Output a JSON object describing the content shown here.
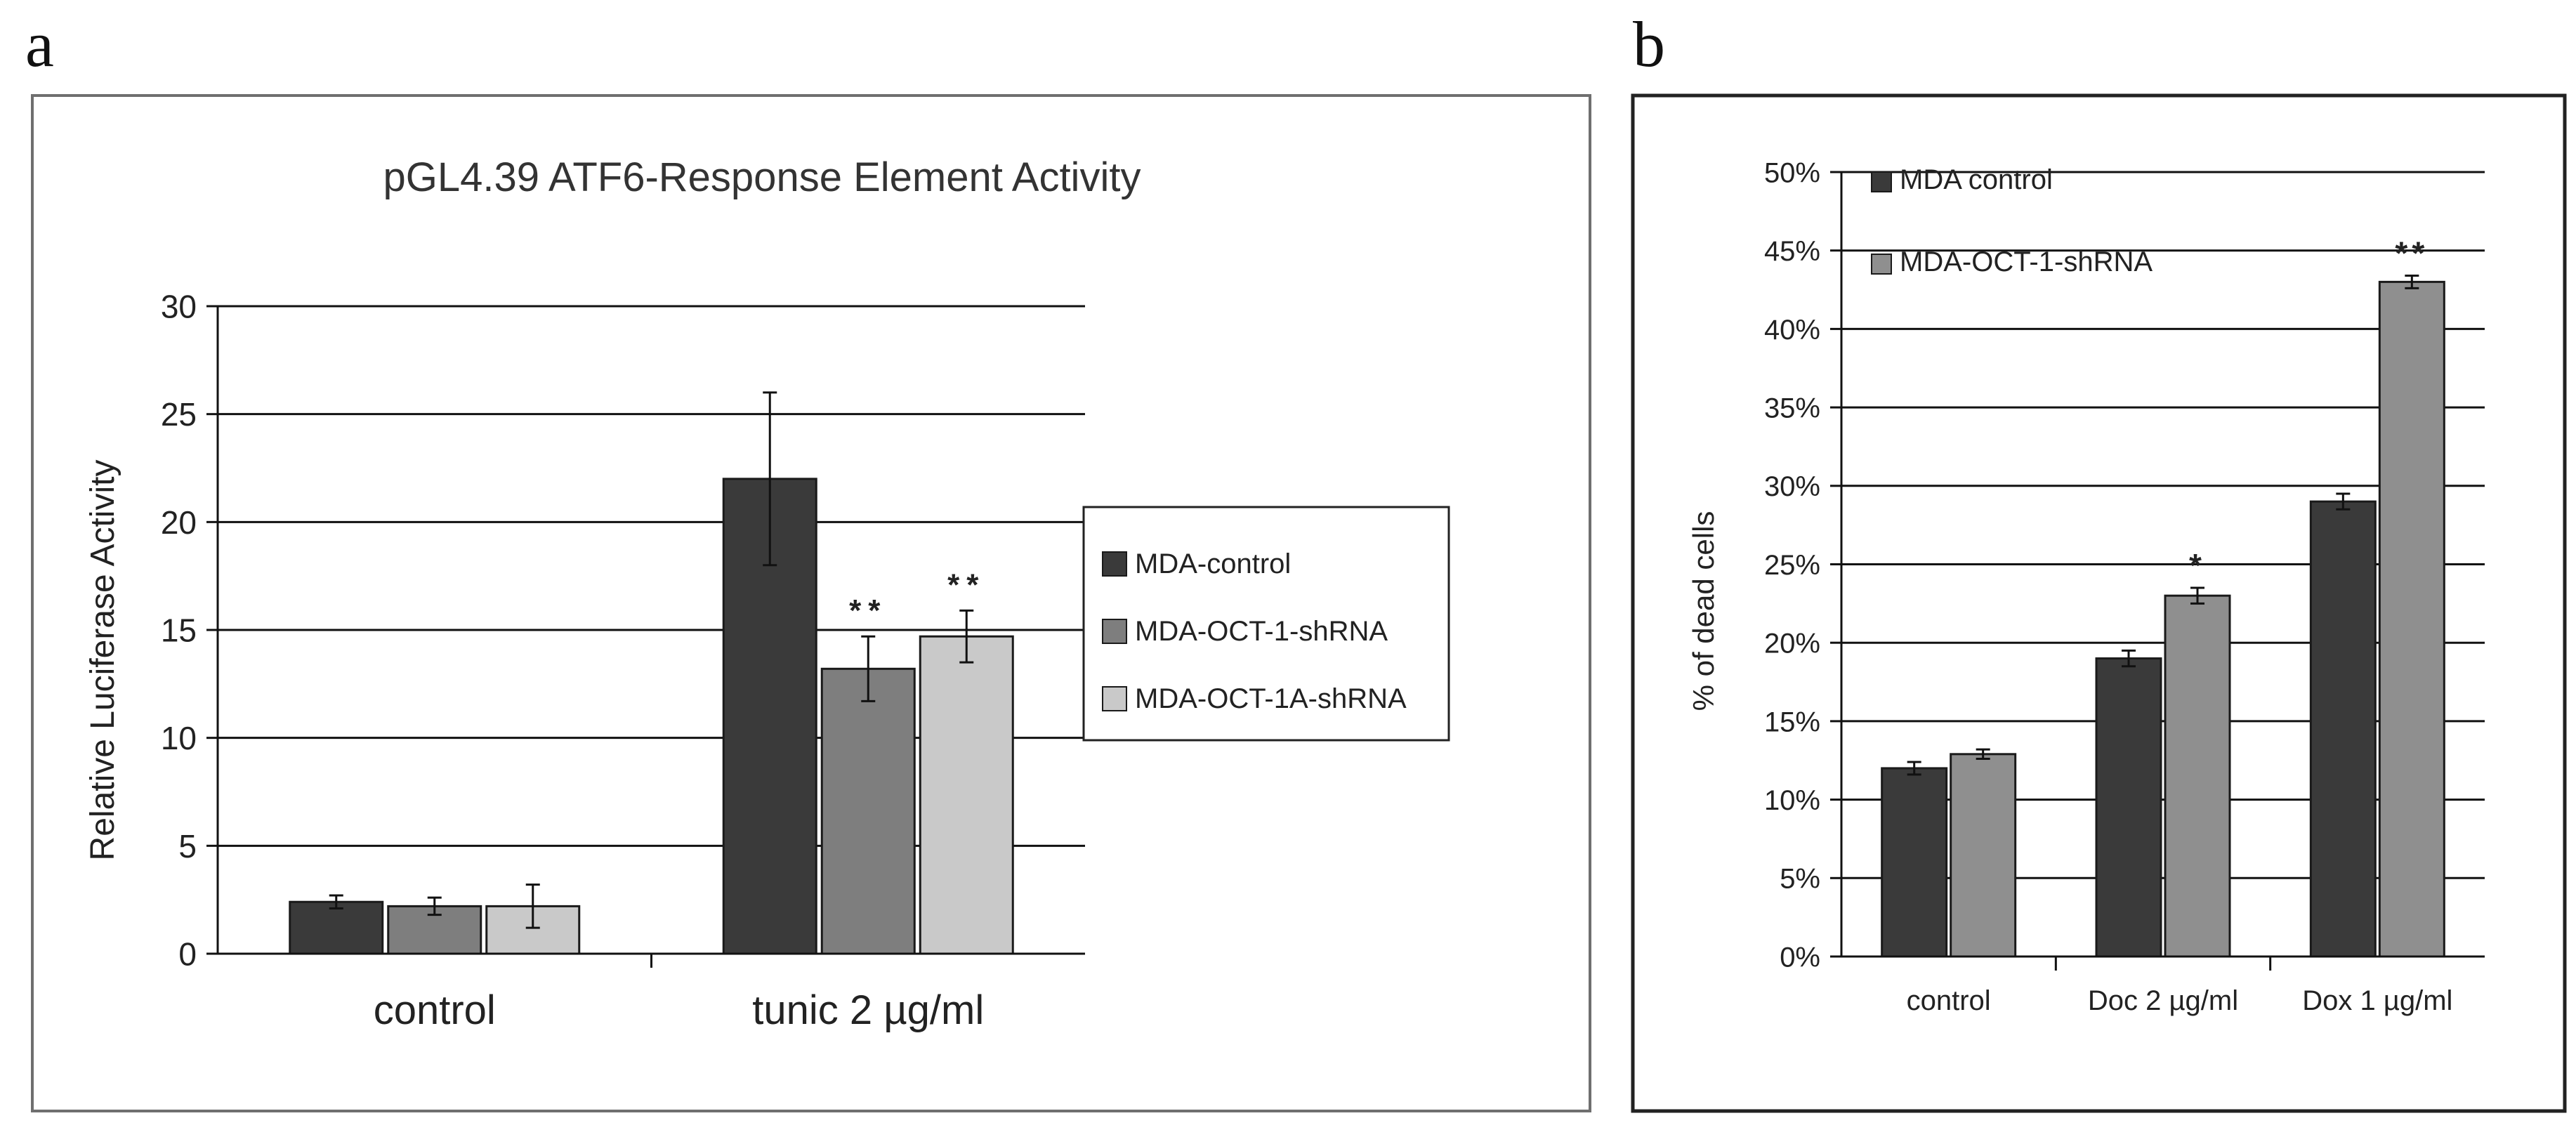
{
  "chart_data": [
    {
      "panel": "a",
      "type": "bar",
      "title": "pGL4.39 ATF6-Response Element Activity",
      "xlabel": "",
      "ylabel": "Relative Luciferase Activity",
      "ylim": [
        0,
        30
      ],
      "yticks": [
        "0",
        "5",
        "10",
        "15",
        "20",
        "25",
        "30"
      ],
      "categories": [
        "control",
        "tunic 2 µg/ml"
      ],
      "series": [
        {
          "name": "MDA-control",
          "color": "#3a3a3a",
          "values": [
            2.4,
            22.0
          ],
          "errors": [
            0.3,
            4.0
          ],
          "markers": [
            "",
            ""
          ]
        },
        {
          "name": "MDA-OCT-1-shRNA",
          "color": "#7e7e7e",
          "values": [
            2.2,
            13.2
          ],
          "errors": [
            0.4,
            1.5
          ],
          "markers": [
            "",
            "**"
          ]
        },
        {
          "name": "MDA-OCT-1A-shRNA",
          "color": "#c9c9c9",
          "values": [
            2.2,
            14.7
          ],
          "errors": [
            1.0,
            1.2
          ],
          "markers": [
            "",
            "**"
          ]
        }
      ],
      "legend_position": "right"
    },
    {
      "panel": "b",
      "type": "bar",
      "title": "",
      "xlabel": "",
      "ylabel": "% of dead cells",
      "ylim": [
        0,
        50
      ],
      "yticks": [
        "0%",
        "5%",
        "10%",
        "15%",
        "20%",
        "25%",
        "30%",
        "35%",
        "40%",
        "45%",
        "50%"
      ],
      "categories": [
        "control",
        "Doc 2 µg/ml",
        "Dox 1 µg/ml"
      ],
      "series": [
        {
          "name": "MDA control",
          "color": "#3a3a3a",
          "values": [
            12.0,
            19.0,
            29.0
          ],
          "errors": [
            0.4,
            0.5,
            0.5
          ],
          "markers": [
            "",
            "",
            ""
          ]
        },
        {
          "name": "MDA-OCT-1-shRNA",
          "color": "#8f8f8f",
          "values": [
            12.9,
            23.0,
            43.0
          ],
          "errors": [
            0.3,
            0.5,
            0.4
          ],
          "markers": [
            "",
            "*",
            "**"
          ]
        }
      ],
      "legend_position": "top-left"
    }
  ]
}
